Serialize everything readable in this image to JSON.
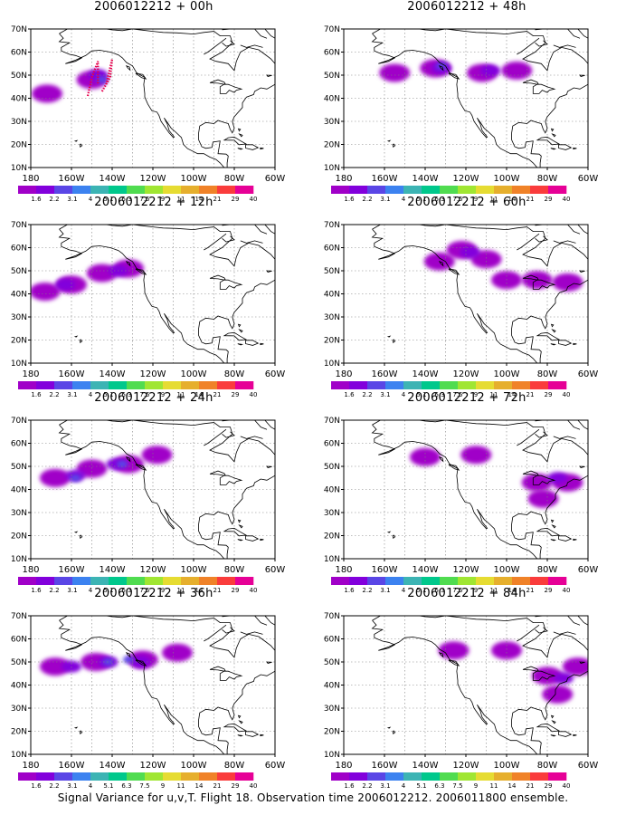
{
  "footer": "Signal Variance for u,v,T. Flight 18. Observation time 2006012212. 2006011800 ensemble.",
  "colors": {
    "scale": [
      "#a000c8",
      "#8200dc",
      "#5a46e6",
      "#3c82f0",
      "#3cb4b4",
      "#00c88c",
      "#50dc50",
      "#a0e632",
      "#e6dc32",
      "#e6af2d",
      "#f08228",
      "#fa3c3c",
      "#e60096"
    ],
    "coast": "#000000",
    "grid": "#808080"
  },
  "chart_data": [
    {
      "type": "heatmap",
      "title": "2006012212 + 00h",
      "xticks": [
        "180",
        "160W",
        "140W",
        "120W",
        "100W",
        "80W",
        "60W"
      ],
      "yticks": [
        "10N",
        "20N",
        "30N",
        "40N",
        "50N",
        "60N",
        "70N"
      ],
      "xlim": [
        -180,
        -60
      ],
      "ylim": [
        10,
        70
      ],
      "grid": true,
      "colorbar": [
        "1.6",
        "2.2",
        "3.1",
        "4",
        "5.1",
        "6.3",
        "7.5",
        "9",
        "11",
        "14",
        "21",
        "29",
        "40"
      ],
      "features": [
        {
          "lon": -172,
          "lat": 42,
          "level": 0
        },
        {
          "lon": -150,
          "lat": 48,
          "level": 0
        },
        {
          "lon": -147,
          "lat": 50,
          "level": 1
        },
        {
          "lon": -145,
          "lat": 48,
          "level": 2
        }
      ],
      "observation_tracks": [
        {
          "lon": [
            -152,
            -150,
            -147,
            -147
          ],
          "lat": [
            41,
            49,
            56,
            46
          ]
        },
        {
          "lon": [
            -145,
            -141,
            -140,
            -143
          ],
          "lat": [
            43,
            49,
            57,
            46
          ]
        }
      ]
    },
    {
      "type": "heatmap",
      "title": "2006012212 + 12h",
      "xticks": [
        "180",
        "160W",
        "140W",
        "120W",
        "100W",
        "80W",
        "60W"
      ],
      "yticks": [
        "10N",
        "20N",
        "30N",
        "40N",
        "50N",
        "60N",
        "70N"
      ],
      "xlim": [
        -180,
        -60
      ],
      "ylim": [
        10,
        70
      ],
      "grid": true,
      "colorbar": [
        "1.6",
        "2.2",
        "3.1",
        "4",
        "5.1",
        "6.3",
        "7.5",
        "9",
        "11",
        "14",
        "21",
        "29",
        "40"
      ],
      "features": [
        {
          "lon": -173,
          "lat": 41,
          "level": 0
        },
        {
          "lon": -160,
          "lat": 44,
          "level": 0
        },
        {
          "lon": -145,
          "lat": 49,
          "level": 0
        },
        {
          "lon": -132,
          "lat": 51,
          "level": 0
        },
        {
          "lon": -137,
          "lat": 50,
          "level": 1
        },
        {
          "lon": -163,
          "lat": 44,
          "level": 1
        }
      ]
    },
    {
      "type": "heatmap",
      "title": "2006012212 + 24h",
      "xticks": [
        "180",
        "160W",
        "140W",
        "120W",
        "100W",
        "80W",
        "60W"
      ],
      "yticks": [
        "10N",
        "20N",
        "30N",
        "40N",
        "50N",
        "60N",
        "70N"
      ],
      "xlim": [
        -180,
        -60
      ],
      "ylim": [
        10,
        70
      ],
      "grid": true,
      "colorbar": [
        "1.6",
        "2.2",
        "3.1",
        "4",
        "5.1",
        "6.3",
        "7.5",
        "9",
        "11",
        "14",
        "21",
        "29",
        "40"
      ],
      "features": [
        {
          "lon": -168,
          "lat": 45,
          "level": 0
        },
        {
          "lon": -150,
          "lat": 49,
          "level": 0
        },
        {
          "lon": -132,
          "lat": 51,
          "level": 0
        },
        {
          "lon": -118,
          "lat": 55,
          "level": 0
        },
        {
          "lon": -158,
          "lat": 46,
          "level": 1
        },
        {
          "lon": -138,
          "lat": 51,
          "level": 1
        },
        {
          "lon": -158,
          "lat": 45,
          "level": 2
        },
        {
          "lon": -135,
          "lat": 51,
          "level": 2
        }
      ]
    },
    {
      "type": "heatmap",
      "title": "2006012212 + 36h",
      "xticks": [
        "180",
        "160W",
        "140W",
        "120W",
        "100W",
        "80W",
        "60W"
      ],
      "yticks": [
        "10N",
        "20N",
        "30N",
        "40N",
        "50N",
        "60N",
        "70N"
      ],
      "xlim": [
        -180,
        -60
      ],
      "ylim": [
        10,
        70
      ],
      "grid": true,
      "colorbar": [
        "1.6",
        "2.2",
        "3.1",
        "4",
        "5.1",
        "6.3",
        "7.5",
        "9",
        "11",
        "14",
        "21",
        "29",
        "40"
      ],
      "features": [
        {
          "lon": -168,
          "lat": 48,
          "level": 0
        },
        {
          "lon": -148,
          "lat": 50,
          "level": 0
        },
        {
          "lon": -125,
          "lat": 51,
          "level": 0
        },
        {
          "lon": -108,
          "lat": 54,
          "level": 0
        },
        {
          "lon": -160,
          "lat": 48,
          "level": 1
        },
        {
          "lon": -142,
          "lat": 50,
          "level": 1
        },
        {
          "lon": -126,
          "lat": 50,
          "level": 1
        },
        {
          "lon": -142,
          "lat": 50,
          "level": 2
        },
        {
          "lon": -132,
          "lat": 51,
          "level": 2
        }
      ]
    },
    {
      "type": "heatmap",
      "title": "2006012212 + 48h",
      "xticks": [
        "180",
        "160W",
        "140W",
        "120W",
        "100W",
        "80W",
        "60W"
      ],
      "yticks": [
        "10N",
        "20N",
        "30N",
        "40N",
        "50N",
        "60N",
        "70N"
      ],
      "xlim": [
        -180,
        -60
      ],
      "ylim": [
        10,
        70
      ],
      "grid": true,
      "colorbar": [
        "1.6",
        "2.2",
        "3.1",
        "4",
        "5.1",
        "6.3",
        "7.5",
        "9",
        "11",
        "14",
        "21",
        "29",
        "40"
      ],
      "features": [
        {
          "lon": -155,
          "lat": 51,
          "level": 0
        },
        {
          "lon": -135,
          "lat": 53,
          "level": 0
        },
        {
          "lon": -112,
          "lat": 51,
          "level": 0
        },
        {
          "lon": -95,
          "lat": 52,
          "level": 0
        },
        {
          "lon": -132,
          "lat": 53,
          "level": 1
        },
        {
          "lon": -108,
          "lat": 52,
          "level": 1
        },
        {
          "lon": -132,
          "lat": 54,
          "level": 2
        }
      ]
    },
    {
      "type": "heatmap",
      "title": "2006012212 + 60h",
      "xticks": [
        "180",
        "160W",
        "140W",
        "120W",
        "100W",
        "80W",
        "60W"
      ],
      "yticks": [
        "10N",
        "20N",
        "30N",
        "40N",
        "50N",
        "60N",
        "70N"
      ],
      "xlim": [
        -180,
        -60
      ],
      "ylim": [
        10,
        70
      ],
      "grid": true,
      "colorbar": [
        "1.6",
        "2.2",
        "3.1",
        "4",
        "5.1",
        "6.3",
        "7.5",
        "9",
        "11",
        "14",
        "21",
        "29",
        "40"
      ],
      "features": [
        {
          "lon": -133,
          "lat": 54,
          "level": 0
        },
        {
          "lon": -122,
          "lat": 59,
          "level": 0
        },
        {
          "lon": -110,
          "lat": 55,
          "level": 0
        },
        {
          "lon": -100,
          "lat": 46,
          "level": 0
        },
        {
          "lon": -85,
          "lat": 46,
          "level": 0
        },
        {
          "lon": -70,
          "lat": 45,
          "level": 0
        },
        {
          "lon": -118,
          "lat": 58,
          "level": 1
        }
      ]
    },
    {
      "type": "heatmap",
      "title": "2006012212 + 72h",
      "xticks": [
        "180",
        "160W",
        "140W",
        "120W",
        "100W",
        "80W",
        "60W"
      ],
      "yticks": [
        "10N",
        "20N",
        "30N",
        "40N",
        "50N",
        "60N",
        "70N"
      ],
      "xlim": [
        -180,
        -60
      ],
      "ylim": [
        10,
        70
      ],
      "grid": true,
      "colorbar": [
        "1.6",
        "2.2",
        "3.1",
        "4",
        "5.1",
        "6.3",
        "7.5",
        "9",
        "11",
        "14",
        "21",
        "29",
        "40"
      ],
      "features": [
        {
          "lon": -140,
          "lat": 54,
          "level": 0
        },
        {
          "lon": -115,
          "lat": 55,
          "level": 0
        },
        {
          "lon": -85,
          "lat": 43,
          "level": 0
        },
        {
          "lon": -70,
          "lat": 43,
          "level": 0
        },
        {
          "lon": -82,
          "lat": 36,
          "level": 0
        },
        {
          "lon": -75,
          "lat": 45,
          "level": 1
        }
      ]
    },
    {
      "type": "heatmap",
      "title": "2006012212 + 84h",
      "xticks": [
        "180",
        "160W",
        "140W",
        "120W",
        "100W",
        "80W",
        "60W"
      ],
      "yticks": [
        "10N",
        "20N",
        "30N",
        "40N",
        "50N",
        "60N",
        "70N"
      ],
      "xlim": [
        -180,
        -60
      ],
      "ylim": [
        10,
        70
      ],
      "grid": true,
      "colorbar": [
        "1.6",
        "2.2",
        "3.1",
        "4",
        "5.1",
        "6.3",
        "7.5",
        "9",
        "11",
        "14",
        "21",
        "29",
        "40"
      ],
      "features": [
        {
          "lon": -126,
          "lat": 55,
          "level": 0
        },
        {
          "lon": -100,
          "lat": 55,
          "level": 0
        },
        {
          "lon": -80,
          "lat": 44,
          "level": 0
        },
        {
          "lon": -65,
          "lat": 48,
          "level": 0
        },
        {
          "lon": -75,
          "lat": 36,
          "level": 0
        },
        {
          "lon": -72,
          "lat": 43,
          "level": 1
        }
      ]
    }
  ]
}
